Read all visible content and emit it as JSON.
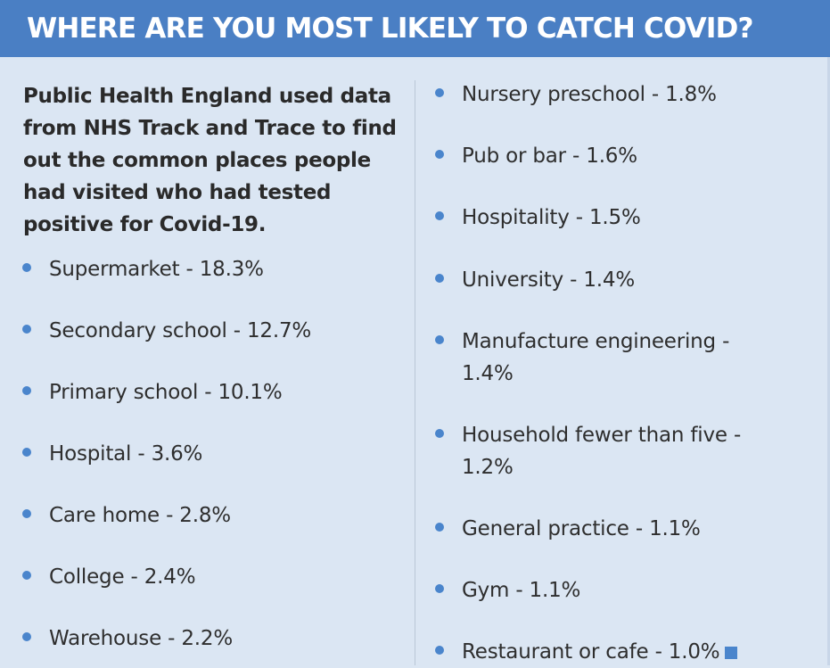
{
  "header": {
    "title": "WHERE ARE YOU MOST LIKELY TO CATCH COVID?"
  },
  "intro": {
    "text": "Public Health England used data from NHS Track and Trace to find out the common places people had visited who had tested positive for Covid-19."
  },
  "colors": {
    "header_background": "#4a7fc4",
    "page_background": "#dbe6f3",
    "bullet": "#4a85cc"
  },
  "left_list": [
    {
      "text": "Supermarket - 18.3%"
    },
    {
      "text": "Secondary school - 12.7%"
    },
    {
      "text": "Primary school - 10.1%"
    },
    {
      "text": "Hospital - 3.6%"
    },
    {
      "text": "Care home - 2.8%"
    },
    {
      "text": "College - 2.4%"
    },
    {
      "text": "Warehouse - 2.2%"
    }
  ],
  "right_list": [
    {
      "text": "Nursery preschool - 1.8%"
    },
    {
      "text": "Pub or bar - 1.6%"
    },
    {
      "text": "Hospitality - 1.5%"
    },
    {
      "text": "University - 1.4%"
    },
    {
      "text": "Manufacture engineering - 1.4%"
    },
    {
      "text": "Household fewer than five - 1.2%"
    },
    {
      "text": "General practice - 1.1%"
    },
    {
      "text": "Gym - 1.1%"
    },
    {
      "text": "Restaurant or cafe - 1.0%"
    }
  ]
}
